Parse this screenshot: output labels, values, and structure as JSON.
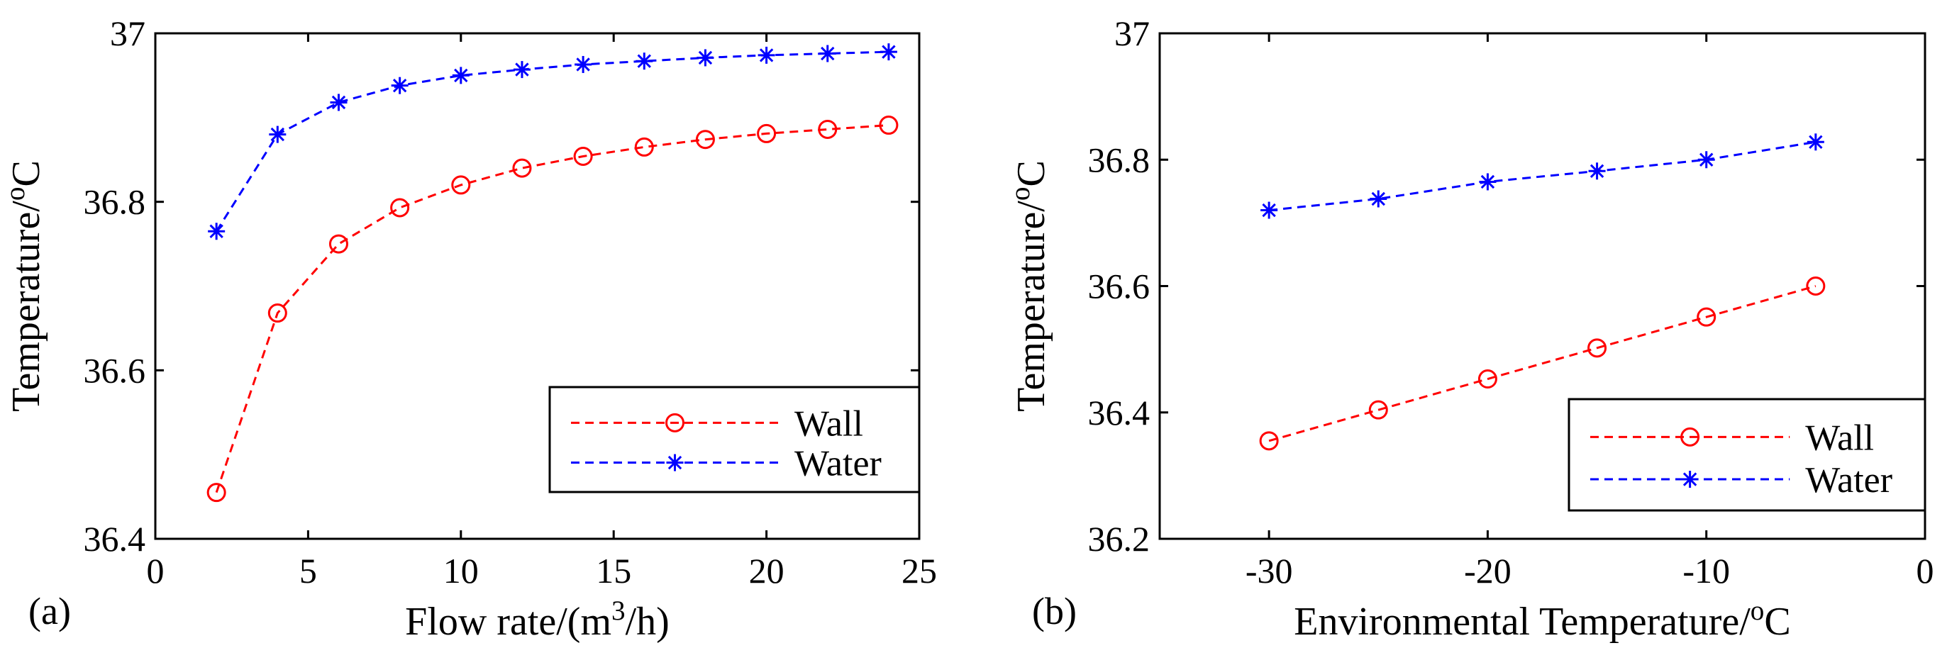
{
  "chart_data": [
    {
      "type": "line",
      "panel_label": "(a)",
      "title": "",
      "xlabel": "Flow rate/(m3/h)",
      "xlabel_parts": [
        "Flow rate/(m",
        "3",
        "/h)"
      ],
      "ylabel": "Temperature/oC",
      "ylabel_parts": [
        "Temperature/",
        "o",
        "C"
      ],
      "xlim": [
        0,
        25
      ],
      "ylim": [
        36.4,
        37
      ],
      "xticks": [
        0,
        5,
        10,
        15,
        20,
        25
      ],
      "xtick_labels": [
        "0",
        "5",
        "10",
        "15",
        "20",
        "25"
      ],
      "yticks": [
        36.4,
        36.6,
        36.8,
        37
      ],
      "ytick_labels": [
        "36.4",
        "36.6",
        "36.8",
        "37"
      ],
      "grid": false,
      "legend_position": "bottom-right",
      "x": [
        2,
        4,
        6,
        8,
        10,
        12,
        14,
        16,
        18,
        20,
        22,
        24
      ],
      "series": [
        {
          "name": "Wall",
          "color": "#ff0000",
          "marker": "circle",
          "values": [
            36.455,
            36.668,
            36.75,
            36.793,
            36.82,
            36.84,
            36.854,
            36.865,
            36.874,
            36.881,
            36.886,
            36.891
          ]
        },
        {
          "name": "Water",
          "color": "#0000ff",
          "marker": "asterisk",
          "values": [
            36.765,
            36.88,
            36.918,
            36.938,
            36.95,
            36.957,
            36.963,
            36.967,
            36.971,
            36.974,
            36.976,
            36.978
          ]
        }
      ]
    },
    {
      "type": "line",
      "panel_label": "(b)",
      "title": "",
      "xlabel": "Environmental Temperature/oC",
      "xlabel_parts": [
        "Environmental Temperature/",
        "o",
        "C"
      ],
      "ylabel": "Temperature/oC",
      "ylabel_parts": [
        "Temperature/",
        "o",
        "C"
      ],
      "xlim": [
        -35,
        0
      ],
      "ylim": [
        36.2,
        37
      ],
      "xticks": [
        -30,
        -20,
        -10,
        0
      ],
      "xtick_labels": [
        "-30",
        "-20",
        "-10",
        "0"
      ],
      "yticks": [
        36.2,
        36.4,
        36.6,
        36.8,
        37
      ],
      "ytick_labels": [
        "36.2",
        "36.4",
        "36.6",
        "36.8",
        "37"
      ],
      "grid": false,
      "legend_position": "bottom-right",
      "x": [
        -30,
        -25,
        -20,
        -15,
        -10,
        -5
      ],
      "series": [
        {
          "name": "Wall",
          "color": "#ff0000",
          "marker": "circle",
          "values": [
            36.355,
            36.404,
            36.453,
            36.502,
            36.551,
            36.6
          ]
        },
        {
          "name": "Water",
          "color": "#0000ff",
          "marker": "asterisk",
          "values": [
            36.72,
            36.738,
            36.765,
            36.782,
            36.8,
            36.828
          ]
        }
      ]
    }
  ]
}
